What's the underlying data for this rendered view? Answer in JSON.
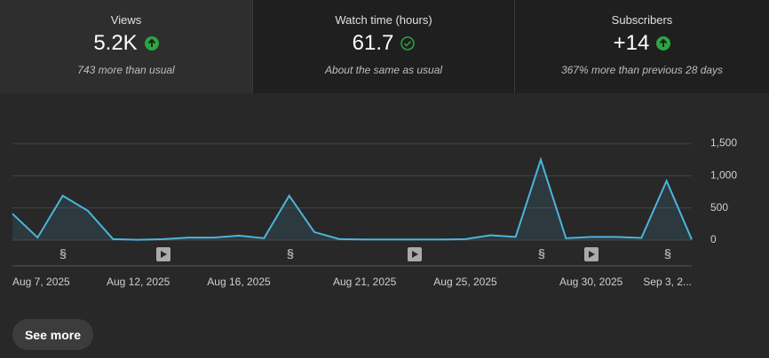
{
  "cards": [
    {
      "title": "Views",
      "value": "5.2K",
      "note": "743 more than usual"
    },
    {
      "title": "Watch time (hours)",
      "value": "61.7",
      "note": "About the same as usual"
    },
    {
      "title": "Subscribers",
      "value": "+14",
      "note": "367% more than previous 28 days"
    }
  ],
  "chart_data": {
    "type": "area",
    "categories": [
      "Aug 7, 2025",
      null,
      null,
      null,
      null,
      "Aug 12, 2025",
      null,
      null,
      null,
      "Aug 16, 2025",
      null,
      null,
      null,
      null,
      "Aug 21, 2025",
      null,
      null,
      null,
      "Aug 25, 2025",
      null,
      null,
      null,
      null,
      "Aug 30, 2025",
      null,
      null,
      null,
      "Sep 3, 2..."
    ],
    "series": [
      {
        "color": "#4cb4dc",
        "values": [
          410,
          40,
          690,
          455,
          15,
          5,
          15,
          40,
          40,
          70,
          30,
          690,
          125,
          15,
          10,
          10,
          10,
          10,
          15,
          75,
          50,
          1250,
          30,
          50,
          50,
          35,
          920,
          10
        ]
      }
    ],
    "ylim": [
      0,
      1500
    ],
    "yticks": [
      0,
      500,
      {
        "value": 1000,
        "label": "1,000"
      },
      {
        "value": 1500,
        "label": "1,500"
      }
    ],
    "grid": true
  },
  "button": {
    "label": "See more"
  }
}
